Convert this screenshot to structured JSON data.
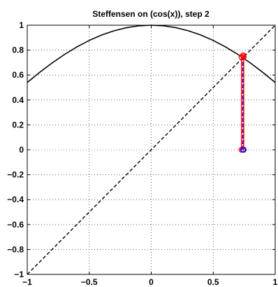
{
  "chart_data": {
    "type": "line",
    "title": "Steffensen on (cos(x)), step 2",
    "xlabel": "",
    "ylabel": "",
    "xlim": [
      -1,
      1
    ],
    "ylim": [
      -1,
      1
    ],
    "xticks": [
      "−1",
      "−0.5",
      "0",
      "0.5",
      "1"
    ],
    "yticks": [
      "1",
      "0.8",
      "0.6",
      "0.4",
      "0.2",
      "0",
      "−0.2",
      "−0.4",
      "−0.6",
      "−0.8",
      "−1"
    ],
    "grid": true,
    "series": [
      {
        "role": "cos-curve",
        "style": "solid",
        "color": "#000000",
        "x": [
          -1,
          -0.9,
          -0.8,
          -0.7,
          -0.6,
          -0.5,
          -0.4,
          -0.3,
          -0.2,
          -0.1,
          0,
          0.1,
          0.2,
          0.3,
          0.4,
          0.5,
          0.6,
          0.7,
          0.8,
          0.9,
          1
        ],
        "y": [
          0.5403,
          0.6216,
          0.6967,
          0.7648,
          0.8253,
          0.8776,
          0.9211,
          0.9553,
          0.9801,
          0.995,
          1,
          0.995,
          0.9801,
          0.9553,
          0.9211,
          0.8776,
          0.8253,
          0.7648,
          0.6967,
          0.6216,
          0.5403
        ]
      },
      {
        "role": "identity-line",
        "style": "dashed",
        "color": "#000000",
        "x": [
          -1,
          1
        ],
        "y": [
          -1,
          1
        ]
      },
      {
        "role": "steffensen-solid",
        "style": "solid",
        "color": "#ff0000",
        "x": [
          0.728,
          0.728,
          0.746,
          0.746
        ],
        "y": [
          0,
          0.744,
          0.744,
          0
        ]
      },
      {
        "role": "steffensen-dashed-red",
        "style": "dashed",
        "color": "#ff0000",
        "x": [
          0.744,
          0.744,
          0.74,
          0.74
        ],
        "y": [
          0,
          0.757,
          0.757,
          0
        ]
      },
      {
        "role": "steffensen-dashed-blue",
        "style": "dashed",
        "color": "#0000ff",
        "x": [
          0.738,
          0.738
        ],
        "y": [
          0,
          0.74
        ]
      }
    ],
    "markers": [
      {
        "x": 0.728,
        "y": 0,
        "color": "#ff0000"
      },
      {
        "x": 0.746,
        "y": 0,
        "color": "#ff0000"
      },
      {
        "x": 0.744,
        "y": 0,
        "color": "#0000ff"
      },
      {
        "x": 0.74,
        "y": 0,
        "color": "#0000ff"
      },
      {
        "x": 0.728,
        "y": 0.744,
        "color": "#ff0000"
      },
      {
        "x": 0.746,
        "y": 0.744,
        "color": "#ff0000"
      },
      {
        "x": 0.744,
        "y": 0.757,
        "color": "#ff0000"
      },
      {
        "x": 0.74,
        "y": 0.757,
        "color": "#ff0000"
      }
    ]
  }
}
